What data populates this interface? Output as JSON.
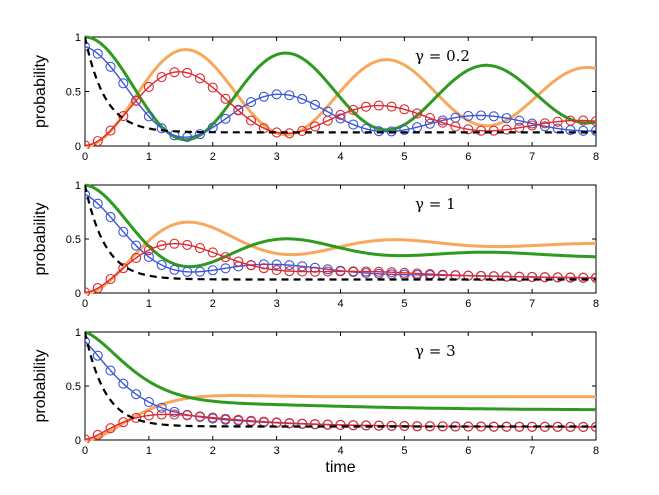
{
  "chart_data": [
    {
      "type": "line",
      "ylabel": "probability",
      "xlabel": "",
      "annotation": "γ = 0.2",
      "gamma": 0.2,
      "xlim": [
        0,
        8
      ],
      "ylim": [
        0,
        1
      ],
      "xticks": [
        "0",
        "1",
        "2",
        "3",
        "4",
        "5",
        "6",
        "7",
        "8"
      ],
      "yticks": [
        "0",
        "0.5",
        "1"
      ]
    },
    {
      "type": "line",
      "ylabel": "probability",
      "xlabel": "",
      "annotation": "γ = 1",
      "gamma": 1,
      "xlim": [
        0,
        8
      ],
      "ylim": [
        0,
        1
      ],
      "xticks": [
        "0",
        "1",
        "2",
        "3",
        "4",
        "5",
        "6",
        "7",
        "8"
      ],
      "yticks": [
        "0",
        "0.5",
        "1"
      ]
    },
    {
      "type": "line",
      "ylabel": "probability",
      "xlabel": "time",
      "annotation": "γ = 3",
      "gamma": 3,
      "xlim": [
        0,
        8
      ],
      "ylim": [
        0,
        1
      ],
      "xticks": [
        "0",
        "1",
        "2",
        "3",
        "4",
        "5",
        "6",
        "7",
        "8"
      ],
      "yticks": [
        "0",
        "0.5",
        "1"
      ]
    }
  ],
  "series_styles": {
    "green": {
      "color": "#2e9a1f",
      "style": "solid",
      "markers": false
    },
    "orange": {
      "color": "#f7a85c",
      "style": "solid",
      "markers": false
    },
    "blue": {
      "color": "#3a56d6",
      "style": "solid",
      "markers": true
    },
    "red": {
      "color": "#e0282b",
      "style": "solid",
      "markers": true
    },
    "black": {
      "color": "#000000",
      "style": "dashed",
      "markers": false
    }
  }
}
